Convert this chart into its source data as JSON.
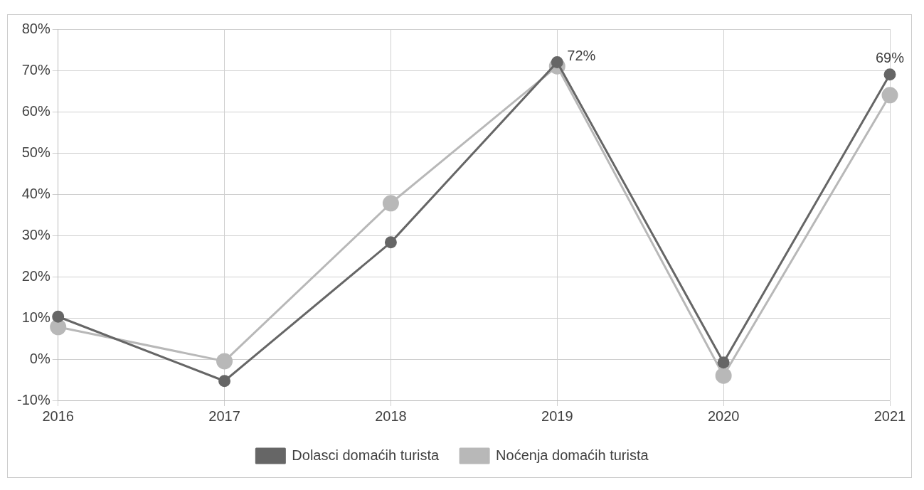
{
  "chart_data": {
    "type": "line",
    "categories": [
      "2016",
      "2017",
      "2018",
      "2019",
      "2020",
      "2021"
    ],
    "series": [
      {
        "name": "Dolasci domaćih turista",
        "color": "#666666",
        "values": [
          10.3,
          -5.3,
          28.3,
          72,
          -0.8,
          69
        ],
        "value_labels": [
          null,
          null,
          null,
          "72%",
          null,
          "69%"
        ]
      },
      {
        "name": "Noćenja domaćih turista",
        "color": "#b8b8b8",
        "values": [
          7.8,
          -0.5,
          37.8,
          71,
          -4,
          64
        ]
      }
    ],
    "ylim": [
      -10,
      80
    ],
    "yticks": [
      {
        "value": -10,
        "label": "-10%"
      },
      {
        "value": 0,
        "label": "0%"
      },
      {
        "value": 10,
        "label": "10%"
      },
      {
        "value": 20,
        "label": "20%"
      },
      {
        "value": 30,
        "label": "30%"
      },
      {
        "value": 40,
        "label": "40%"
      },
      {
        "value": 50,
        "label": "50%"
      },
      {
        "value": 60,
        "label": "60%"
      },
      {
        "value": 70,
        "label": "70%"
      },
      {
        "value": 80,
        "label": "80%"
      }
    ],
    "grid": true,
    "legend": "bottom",
    "marker": "circle",
    "line_style": "solid"
  }
}
